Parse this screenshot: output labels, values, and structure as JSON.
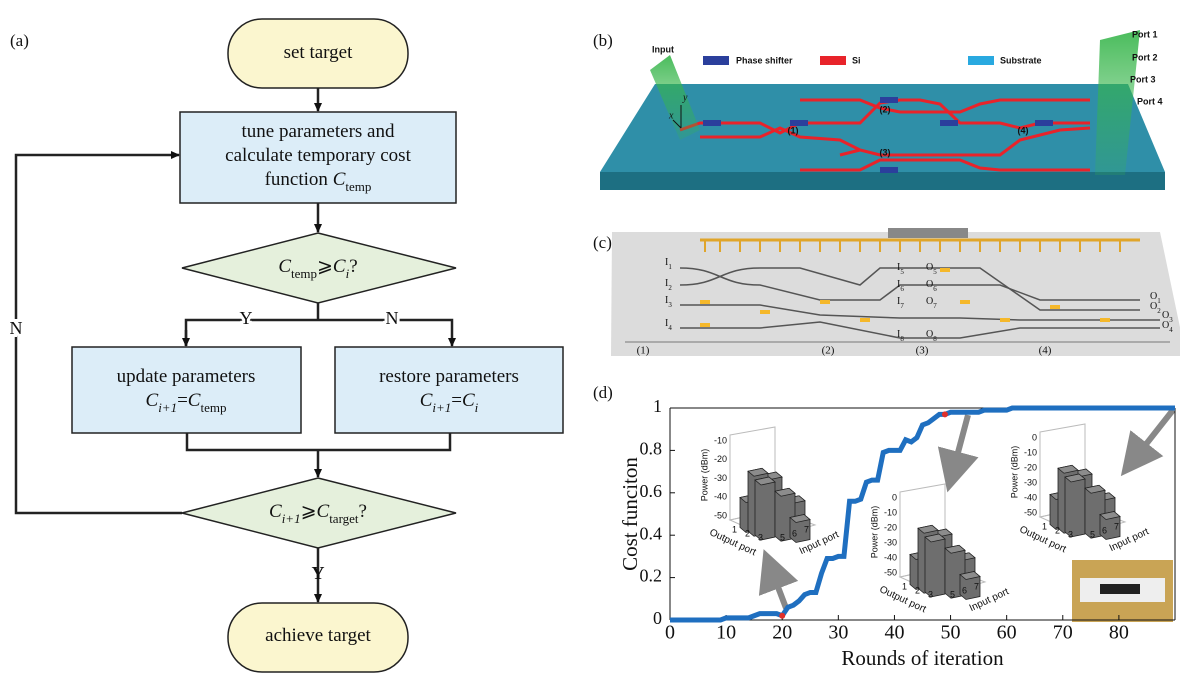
{
  "figure": {
    "panel_labels": [
      "(a)",
      "(b)",
      "(c)",
      "(d)"
    ]
  },
  "flowchart": {
    "nodes": [
      {
        "lines": [
          [
            {
              "text": "set target"
            }
          ]
        ]
      },
      {
        "lines": [
          [
            {
              "text": "tune parameters and"
            }
          ],
          [
            {
              "text": "calculate temporary cost"
            }
          ],
          [
            {
              "text": "function "
            },
            {
              "text": "C",
              "italic": true
            },
            {
              "text": "temp",
              "sub": true
            }
          ]
        ]
      },
      {
        "lines": [
          [
            {
              "text": "C",
              "italic": true
            },
            {
              "text": "temp",
              "sub": true
            },
            {
              "text": "⩾"
            },
            {
              "text": "C",
              "italic": true
            },
            {
              "text": "i",
              "sub": true,
              "italic": true
            },
            {
              "text": "?"
            }
          ]
        ]
      },
      {
        "lines": [
          [
            {
              "text": "update parameters"
            }
          ],
          [
            {
              "text": "C",
              "italic": true
            },
            {
              "text": "i+1",
              "sub": true,
              "italic": true
            },
            {
              "text": "="
            },
            {
              "text": "C",
              "italic": true
            },
            {
              "text": "temp",
              "sub": true
            }
          ]
        ]
      },
      {
        "lines": [
          [
            {
              "text": "restore parameters"
            }
          ],
          [
            {
              "text": "C",
              "italic": true
            },
            {
              "text": "i+1",
              "sub": true,
              "italic": true
            },
            {
              "text": "="
            },
            {
              "text": "C",
              "italic": true
            },
            {
              "text": "i",
              "sub": true,
              "italic": true
            }
          ]
        ]
      },
      {
        "lines": [
          [
            {
              "text": "C",
              "italic": true
            },
            {
              "text": "i+1",
              "sub": true,
              "italic": true
            },
            {
              "text": "⩾"
            },
            {
              "text": "C",
              "italic": true
            },
            {
              "text": "target",
              "sub": true
            },
            {
              "text": "?"
            }
          ]
        ]
      },
      {
        "lines": [
          [
            {
              "text": "achieve target"
            }
          ]
        ]
      }
    ],
    "branch_labels": [
      "Y",
      "N",
      "N",
      "Y"
    ]
  },
  "device_b": {
    "input": "Input",
    "legend": [
      "Phase shifter",
      "Si",
      "Substrate"
    ],
    "legend_colors": [
      "#2b3f9c",
      "#e8232a",
      "#29a9e0"
    ],
    "ports": [
      "Port 1",
      "Port 2",
      "Port 3",
      "Port 4"
    ],
    "stages": [
      "(1)",
      "(2)",
      "(3)",
      "(4)"
    ],
    "axes": [
      "x",
      "y"
    ]
  },
  "device_c": {
    "inputs": [
      [
        "I",
        "1"
      ],
      [
        "I",
        "2"
      ],
      [
        "I",
        "3"
      ],
      [
        "I",
        "4"
      ],
      [
        "I",
        "5"
      ],
      [
        "I",
        "6"
      ],
      [
        "I",
        "7"
      ],
      [
        "I",
        "8"
      ]
    ],
    "outputs": [
      [
        "O",
        "1"
      ],
      [
        "O",
        "2"
      ],
      [
        "O",
        "3"
      ],
      [
        "O",
        "4"
      ],
      [
        "O",
        "5"
      ],
      [
        "O",
        "6"
      ],
      [
        "O",
        "7"
      ],
      [
        "O",
        "8"
      ]
    ],
    "stages": [
      "(1)",
      "(2)",
      "(3)",
      "(4)"
    ]
  },
  "chart_data": {
    "type": "line",
    "xlabel": "Rounds of iteration",
    "ylabel": "Cost funciton",
    "color": "#1f6fc0",
    "x": [
      0,
      1,
      2,
      3,
      4,
      5,
      6,
      7,
      8,
      9,
      10,
      11,
      12,
      13,
      14,
      15,
      16,
      17,
      18,
      19,
      20,
      21,
      22,
      23,
      24,
      25,
      26,
      27,
      28,
      29,
      30,
      31,
      32,
      33,
      34,
      35,
      36,
      37,
      38,
      39,
      40,
      41,
      42,
      43,
      44,
      45,
      46,
      47,
      48,
      49,
      50,
      51,
      52,
      53,
      54,
      55,
      56,
      57,
      58,
      59,
      60,
      61,
      62,
      63,
      64,
      65,
      66,
      67,
      68,
      69,
      70,
      71,
      72,
      73,
      74,
      75,
      76,
      77,
      78,
      79,
      80,
      81,
      82,
      83,
      84,
      85,
      86,
      87,
      88,
      89,
      90
    ],
    "values": [
      0,
      0,
      0,
      0,
      0,
      0,
      0,
      0,
      0,
      0,
      0.01,
      0.01,
      0.01,
      0.01,
      0.01,
      0.02,
      0.03,
      0.03,
      0.03,
      0.03,
      0.02,
      0.06,
      0.07,
      0.09,
      0.12,
      0.13,
      0.13,
      0.22,
      0.29,
      0.29,
      0.3,
      0.3,
      0.56,
      0.56,
      0.57,
      0.65,
      0.66,
      0.66,
      0.79,
      0.8,
      0.8,
      0.8,
      0.85,
      0.84,
      0.86,
      0.92,
      0.93,
      0.95,
      0.97,
      0.97,
      0.98,
      0.98,
      0.98,
      0.98,
      0.98,
      0.98,
      0.99,
      0.99,
      0.99,
      0.99,
      0.99,
      1,
      1,
      1,
      1,
      1,
      1,
      1,
      1,
      1,
      1,
      1,
      1,
      1,
      1,
      1,
      1,
      1,
      1,
      1,
      1,
      1,
      1,
      1,
      1,
      1,
      1,
      1,
      1,
      1,
      1
    ],
    "highlight": {
      "x": [
        20,
        49
      ],
      "values": [
        0.02,
        0.97
      ],
      "color": "#e0302a"
    },
    "xlim": [
      0,
      90
    ],
    "ylim": [
      0,
      1
    ],
    "xticks": [
      0,
      10,
      20,
      30,
      40,
      50,
      60,
      70,
      80
    ],
    "yticks": [
      0,
      0.2,
      0.4,
      0.6,
      0.8,
      1
    ],
    "insets": [
      {
        "zlabel": "Power (dBm)",
        "zticks": [
          -10,
          -20,
          -30,
          -40,
          -50
        ],
        "output_label": "Output port",
        "output_ticks": [
          1,
          2,
          3
        ],
        "input_label": "Input port",
        "input_ticks": [
          5,
          6,
          7
        ]
      },
      {
        "zlabel": "Power (dBm)",
        "zticks": [
          0,
          -10,
          -20,
          -30,
          -40,
          -50
        ],
        "output_label": "Output port",
        "output_ticks": [
          1,
          2,
          3
        ],
        "input_label": "Input port",
        "input_ticks": [
          5,
          6,
          7
        ]
      },
      {
        "zlabel": "Power (dBm)",
        "zticks": [
          0,
          -10,
          -20,
          -30,
          -40,
          -50
        ],
        "output_label": "Output port",
        "output_ticks": [
          1,
          2,
          3
        ],
        "input_label": "Input port",
        "input_ticks": [
          5,
          6,
          7
        ]
      }
    ]
  }
}
